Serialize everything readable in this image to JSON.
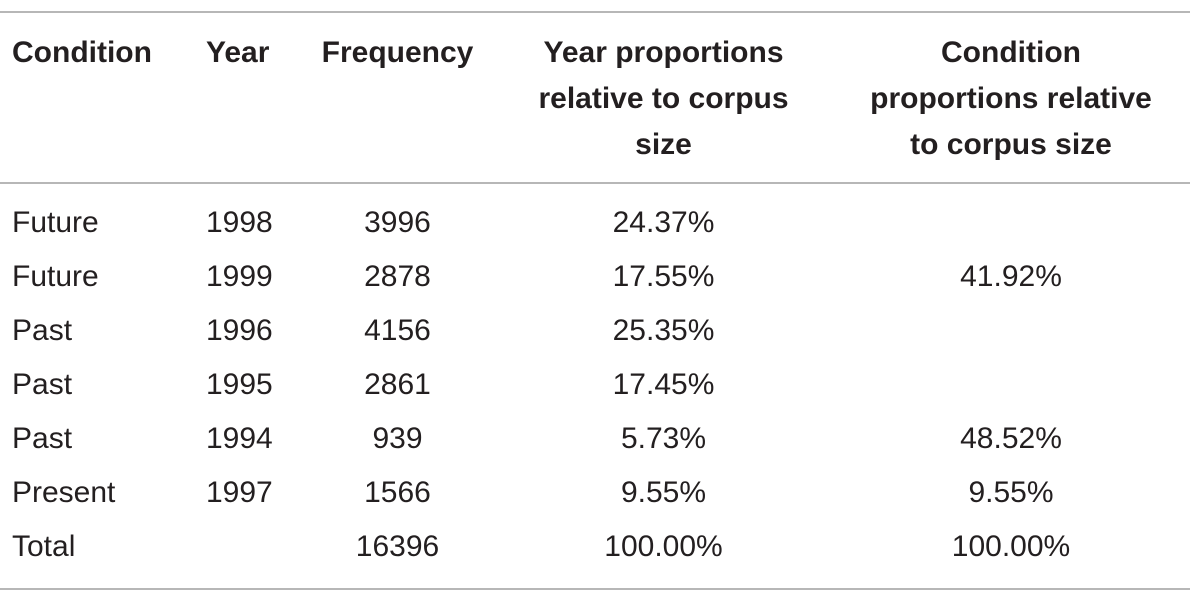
{
  "table": {
    "headers": {
      "condition": "Condition",
      "year": "Year",
      "frequency": "Frequency",
      "year_prop_line1": "Year proportions",
      "year_prop_line2": "relative to corpus",
      "year_prop_line3": "size",
      "cond_prop_line1": "Condition",
      "cond_prop_line2": "proportions relative",
      "cond_prop_line3": "to corpus size"
    },
    "rows": [
      {
        "condition": "Future",
        "year": "1998",
        "frequency": "3996",
        "year_prop": "24.37%",
        "cond_prop": ""
      },
      {
        "condition": "Future",
        "year": "1999",
        "frequency": "2878",
        "year_prop": "17.55%",
        "cond_prop": "41.92%"
      },
      {
        "condition": "Past",
        "year": "1996",
        "frequency": "4156",
        "year_prop": "25.35%",
        "cond_prop": ""
      },
      {
        "condition": "Past",
        "year": "1995",
        "frequency": "2861",
        "year_prop": "17.45%",
        "cond_prop": ""
      },
      {
        "condition": "Past",
        "year": "1994",
        "frequency": "939",
        "year_prop": "5.73%",
        "cond_prop": "48.52%"
      },
      {
        "condition": "Present",
        "year": "1997",
        "frequency": "1566",
        "year_prop": "9.55%",
        "cond_prop": "9.55%"
      },
      {
        "condition": "Total",
        "year": "",
        "frequency": "16396",
        "year_prop": "100.00%",
        "cond_prop": "100.00%"
      }
    ]
  }
}
